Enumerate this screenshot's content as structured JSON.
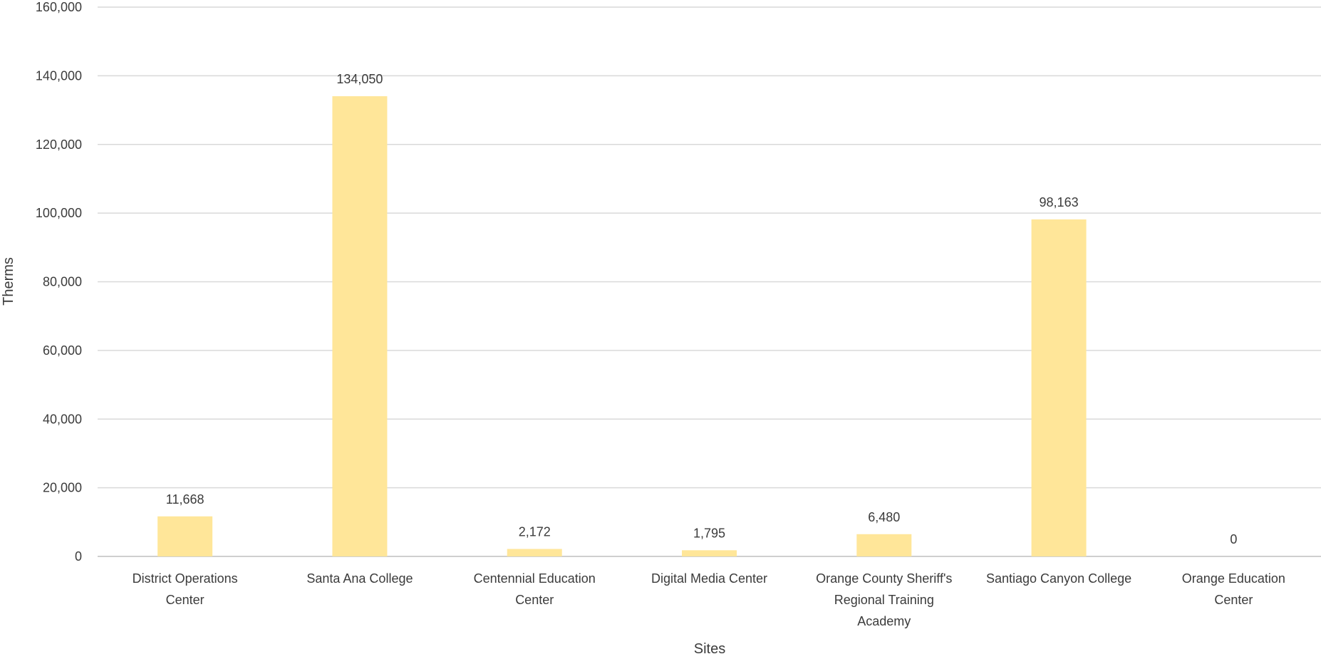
{
  "chart_data": {
    "type": "bar",
    "title": "",
    "xlabel": "Sites",
    "ylabel": "Therms",
    "ylim": [
      0,
      160000
    ],
    "yticks": [
      0,
      20000,
      40000,
      60000,
      80000,
      100000,
      120000,
      140000,
      160000
    ],
    "ytick_labels": [
      "0",
      "20,000",
      "40,000",
      "60,000",
      "80,000",
      "100,000",
      "120,000",
      "140,000",
      "160,000"
    ],
    "grid": true,
    "legend": "none",
    "categories": [
      [
        "District Operations",
        "Center"
      ],
      [
        "Santa Ana College"
      ],
      [
        "Centennial Education",
        "Center"
      ],
      [
        "Digital Media Center"
      ],
      [
        "Orange County Sheriff's",
        "Regional Training",
        "Academy"
      ],
      [
        "Santiago Canyon College"
      ],
      [
        "Orange Education",
        "Center"
      ]
    ],
    "values": [
      11668,
      134050,
      2172,
      1795,
      6480,
      98163,
      0
    ],
    "data_labels": [
      "11,668",
      "134,050",
      "2,172",
      "1,795",
      "6,480",
      "98,163",
      "0"
    ],
    "bar_color": "#FFE699"
  }
}
